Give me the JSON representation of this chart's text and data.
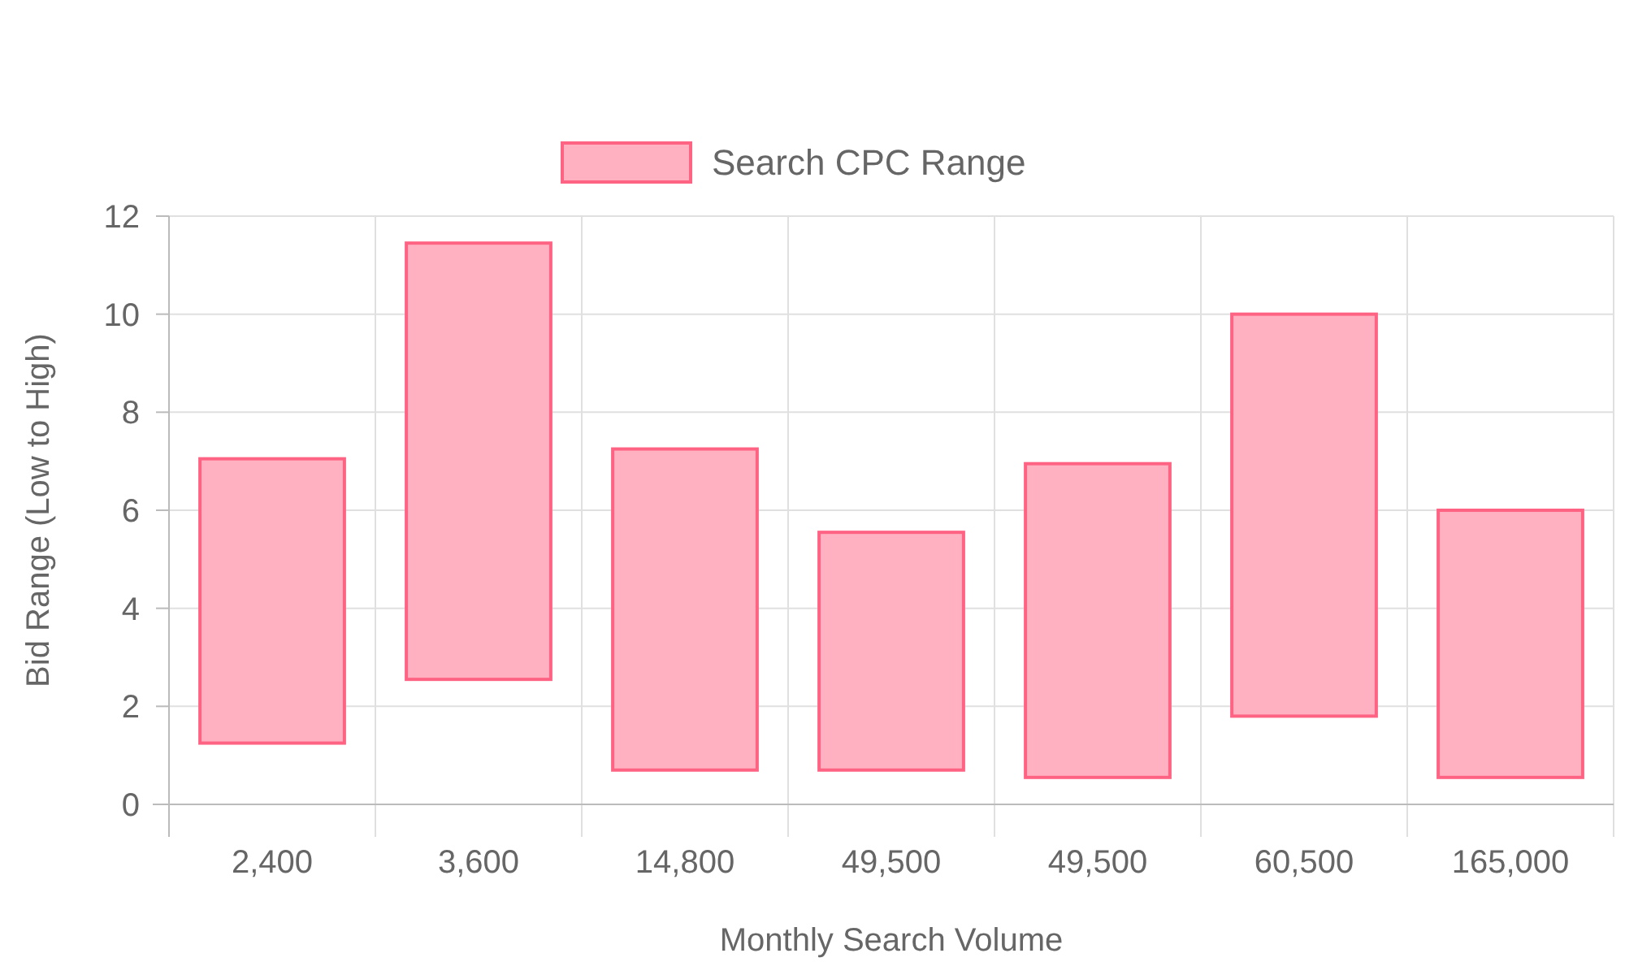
{
  "chart_data": {
    "type": "bar",
    "xlabel": "Monthly Search Volume",
    "ylabel": "Bid Range (Low to High)",
    "categories": [
      "2,400",
      "3,600",
      "14,800",
      "49,500",
      "49,500",
      "60,500",
      "165,000"
    ],
    "series": [
      {
        "name": "Search CPC Range",
        "color": "#ffb1c1",
        "base": [
          1.25,
          2.55,
          0.7,
          0.7,
          0.55,
          1.8,
          0.55
        ],
        "values": [
          5.8,
          8.9,
          6.55,
          4.85,
          6.4,
          8.2,
          5.45
        ]
      }
    ],
    "ylim": [
      0,
      12
    ],
    "yticks": [
      0,
      2,
      4,
      6,
      8,
      10,
      12
    ],
    "grid": true,
    "legend": "top"
  }
}
